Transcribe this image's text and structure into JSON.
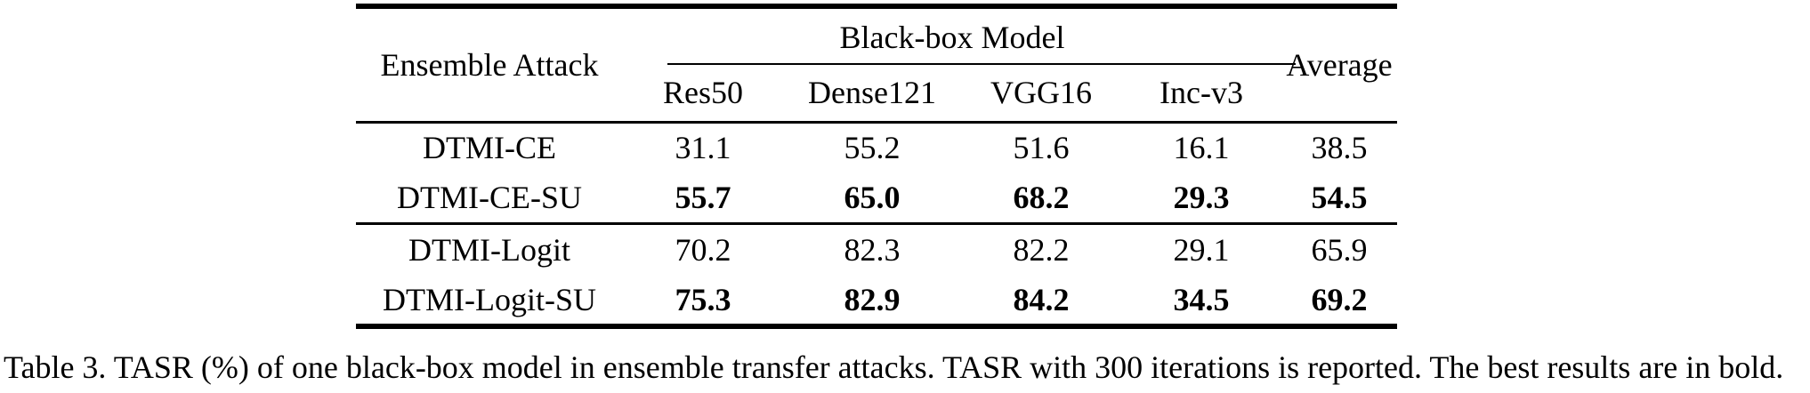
{
  "colors": {
    "text": "#000000",
    "background": "#ffffff",
    "rule": "#000000"
  },
  "table": {
    "header": {
      "attack_col": "Ensemble Attack",
      "group_col": "Black-box Model",
      "avg_col": "Average",
      "model_cols": [
        "Res50",
        "Dense121",
        "VGG16",
        "Inc-v3"
      ]
    },
    "groups": [
      {
        "rows": [
          {
            "label": "DTMI-CE",
            "bold": false,
            "values": [
              "31.1",
              "55.2",
              "51.6",
              "16.1",
              "38.5"
            ]
          },
          {
            "label": "DTMI-CE-SU",
            "bold": true,
            "values": [
              "55.7",
              "65.0",
              "68.2",
              "29.3",
              "54.5"
            ]
          }
        ]
      },
      {
        "rows": [
          {
            "label": "DTMI-Logit",
            "bold": false,
            "values": [
              "70.2",
              "82.3",
              "82.2",
              "29.1",
              "65.9"
            ]
          },
          {
            "label": "DTMI-Logit-SU",
            "bold": true,
            "values": [
              "75.3",
              "82.9",
              "84.2",
              "34.5",
              "69.2"
            ]
          }
        ]
      }
    ]
  },
  "caption": {
    "text": "Table 3. TASR (%) of one black-box model in ensemble transfer attacks. TASR with 300 iterations is reported. The best results are in bold."
  },
  "chart_data": {
    "type": "table",
    "title": "Table 3. TASR (%) of one black-box model in ensemble transfer attacks",
    "columns": [
      "Ensemble Attack",
      "Res50",
      "Dense121",
      "VGG16",
      "Inc-v3",
      "Average"
    ],
    "rows": [
      [
        "DTMI-CE",
        31.1,
        55.2,
        51.6,
        16.1,
        38.5
      ],
      [
        "DTMI-CE-SU",
        55.7,
        65.0,
        68.2,
        29.3,
        54.5
      ],
      [
        "DTMI-Logit",
        70.2,
        82.3,
        82.2,
        29.1,
        65.9
      ],
      [
        "DTMI-Logit-SU",
        75.3,
        82.9,
        84.2,
        34.5,
        69.2
      ]
    ]
  }
}
